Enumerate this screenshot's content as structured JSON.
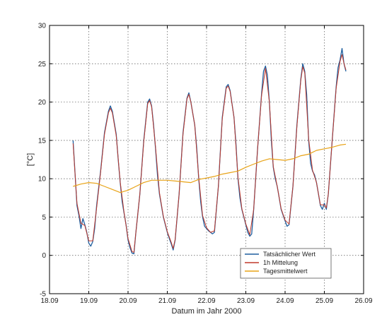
{
  "chart_data": {
    "type": "line",
    "xlabel": "Datum im Jahr 2000",
    "ylabel": "[°C]",
    "xlim": [
      "18.09",
      "26.09"
    ],
    "ylim": [
      -5,
      30
    ],
    "x_ticks": [
      "18.09",
      "19.09",
      "20.09",
      "21.09",
      "22.09",
      "23.09",
      "24.09",
      "25.09",
      "26.09"
    ],
    "y_ticks": [
      -5,
      0,
      5,
      10,
      15,
      20,
      25,
      30
    ],
    "grid": "dotted",
    "legend": "bottom-right",
    "series": [
      {
        "name": "Tatsächlicher Wert",
        "color": "#1f5f9f",
        "x_unit": "day",
        "points": [
          [
            18.6,
            15.0
          ],
          [
            18.7,
            6.5
          ],
          [
            18.75,
            5.2
          ],
          [
            18.8,
            3.5
          ],
          [
            18.85,
            4.8
          ],
          [
            18.9,
            4.0
          ],
          [
            18.95,
            3.0
          ],
          [
            19.0,
            1.6
          ],
          [
            19.05,
            1.2
          ],
          [
            19.1,
            1.8
          ],
          [
            19.15,
            3.5
          ],
          [
            19.2,
            6.5
          ],
          [
            19.3,
            11.0
          ],
          [
            19.4,
            16.0
          ],
          [
            19.5,
            18.8
          ],
          [
            19.55,
            19.5
          ],
          [
            19.6,
            18.8
          ],
          [
            19.7,
            15.8
          ],
          [
            19.75,
            12.5
          ],
          [
            19.8,
            9.5
          ],
          [
            19.85,
            7.0
          ],
          [
            19.9,
            5.5
          ],
          [
            19.95,
            4.0
          ],
          [
            20.0,
            2.0
          ],
          [
            20.05,
            1.0
          ],
          [
            20.1,
            0.3
          ],
          [
            20.15,
            0.2
          ],
          [
            20.2,
            3.0
          ],
          [
            20.3,
            8.0
          ],
          [
            20.4,
            15.0
          ],
          [
            20.5,
            20.0
          ],
          [
            20.55,
            20.4
          ],
          [
            20.6,
            19.5
          ],
          [
            20.65,
            17.0
          ],
          [
            20.7,
            14.0
          ],
          [
            20.75,
            10.5
          ],
          [
            20.8,
            8.0
          ],
          [
            20.85,
            6.5
          ],
          [
            20.9,
            5.0
          ],
          [
            21.0,
            3.0
          ],
          [
            21.05,
            2.2
          ],
          [
            21.1,
            1.5
          ],
          [
            21.15,
            0.7
          ],
          [
            21.2,
            2.0
          ],
          [
            21.3,
            8.0
          ],
          [
            21.4,
            16.0
          ],
          [
            21.5,
            20.5
          ],
          [
            21.55,
            21.2
          ],
          [
            21.6,
            20.0
          ],
          [
            21.7,
            17.0
          ],
          [
            21.75,
            14.0
          ],
          [
            21.8,
            10.0
          ],
          [
            21.85,
            7.0
          ],
          [
            21.9,
            5.0
          ],
          [
            21.95,
            3.8
          ],
          [
            22.05,
            3.2
          ],
          [
            22.15,
            2.8
          ],
          [
            22.2,
            3.0
          ],
          [
            22.3,
            9.0
          ],
          [
            22.4,
            18.0
          ],
          [
            22.5,
            22.0
          ],
          [
            22.55,
            22.3
          ],
          [
            22.6,
            21.5
          ],
          [
            22.7,
            18.0
          ],
          [
            22.75,
            14.5
          ],
          [
            22.8,
            10.0
          ],
          [
            22.85,
            7.5
          ],
          [
            22.9,
            6.0
          ],
          [
            23.0,
            4.0
          ],
          [
            23.05,
            3.0
          ],
          [
            23.1,
            2.5
          ],
          [
            23.15,
            2.8
          ],
          [
            23.2,
            6.0
          ],
          [
            23.3,
            14.0
          ],
          [
            23.4,
            21.0
          ],
          [
            23.45,
            24.0
          ],
          [
            23.5,
            24.7
          ],
          [
            23.55,
            23.5
          ],
          [
            23.6,
            20.0
          ],
          [
            23.65,
            15.0
          ],
          [
            23.7,
            11.5
          ],
          [
            23.75,
            10.0
          ],
          [
            23.8,
            9.0
          ],
          [
            23.85,
            7.5
          ],
          [
            23.9,
            6.0
          ],
          [
            24.0,
            4.5
          ],
          [
            24.05,
            3.8
          ],
          [
            24.1,
            4.0
          ],
          [
            24.2,
            9.0
          ],
          [
            24.3,
            17.0
          ],
          [
            24.4,
            23.0
          ],
          [
            24.45,
            25.0
          ],
          [
            24.5,
            24.0
          ],
          [
            24.55,
            21.0
          ],
          [
            24.6,
            15.0
          ],
          [
            24.65,
            12.0
          ],
          [
            24.7,
            11.0
          ],
          [
            24.75,
            10.5
          ],
          [
            24.8,
            9.5
          ],
          [
            24.85,
            8.0
          ],
          [
            24.9,
            6.5
          ],
          [
            24.95,
            6.0
          ],
          [
            25.0,
            6.8
          ],
          [
            25.05,
            6.0
          ],
          [
            25.1,
            8.0
          ],
          [
            25.2,
            15.0
          ],
          [
            25.3,
            22.0
          ],
          [
            25.35,
            24.5
          ],
          [
            25.4,
            25.5
          ],
          [
            25.45,
            27.0
          ],
          [
            25.5,
            25.0
          ],
          [
            25.55,
            24.0
          ]
        ]
      },
      {
        "name": "1h Mittelung",
        "color": "#c0392b",
        "x_unit": "day",
        "points": [
          [
            18.6,
            14.6
          ],
          [
            18.7,
            6.8
          ],
          [
            18.8,
            4.2
          ],
          [
            18.9,
            3.9
          ],
          [
            19.0,
            1.9
          ],
          [
            19.1,
            1.9
          ],
          [
            19.2,
            6.2
          ],
          [
            19.3,
            10.8
          ],
          [
            19.4,
            15.8
          ],
          [
            19.5,
            18.6
          ],
          [
            19.55,
            19.2
          ],
          [
            19.6,
            18.6
          ],
          [
            19.7,
            15.6
          ],
          [
            19.8,
            9.6
          ],
          [
            19.9,
            5.6
          ],
          [
            20.0,
            2.2
          ],
          [
            20.1,
            0.5
          ],
          [
            20.15,
            0.4
          ],
          [
            20.2,
            3.0
          ],
          [
            20.3,
            8.0
          ],
          [
            20.4,
            14.8
          ],
          [
            20.5,
            19.8
          ],
          [
            20.55,
            20.2
          ],
          [
            20.6,
            19.4
          ],
          [
            20.7,
            14.2
          ],
          [
            20.8,
            8.2
          ],
          [
            20.9,
            5.1
          ],
          [
            21.0,
            3.1
          ],
          [
            21.1,
            1.7
          ],
          [
            21.15,
            0.9
          ],
          [
            21.2,
            2.1
          ],
          [
            21.3,
            8.0
          ],
          [
            21.4,
            15.8
          ],
          [
            21.5,
            20.4
          ],
          [
            21.55,
            21.0
          ],
          [
            21.6,
            20.0
          ],
          [
            21.7,
            17.0
          ],
          [
            21.8,
            10.2
          ],
          [
            21.9,
            5.2
          ],
          [
            22.0,
            3.6
          ],
          [
            22.1,
            3.0
          ],
          [
            22.2,
            3.2
          ],
          [
            22.3,
            9.0
          ],
          [
            22.4,
            17.8
          ],
          [
            22.5,
            21.8
          ],
          [
            22.55,
            22.1
          ],
          [
            22.6,
            21.4
          ],
          [
            22.7,
            18.0
          ],
          [
            22.8,
            10.2
          ],
          [
            22.9,
            6.1
          ],
          [
            23.0,
            4.1
          ],
          [
            23.1,
            2.7
          ],
          [
            23.2,
            6.0
          ],
          [
            23.3,
            14.0
          ],
          [
            23.4,
            20.8
          ],
          [
            23.5,
            24.4
          ],
          [
            23.6,
            20.0
          ],
          [
            23.7,
            11.6
          ],
          [
            23.8,
            9.0
          ],
          [
            23.9,
            6.1
          ],
          [
            24.0,
            4.6
          ],
          [
            24.1,
            4.1
          ],
          [
            24.2,
            9.0
          ],
          [
            24.3,
            16.8
          ],
          [
            24.4,
            22.8
          ],
          [
            24.45,
            24.6
          ],
          [
            24.5,
            23.8
          ],
          [
            24.6,
            15.2
          ],
          [
            24.7,
            11.1
          ],
          [
            24.8,
            9.5
          ],
          [
            24.9,
            6.6
          ],
          [
            25.0,
            6.6
          ],
          [
            25.05,
            6.2
          ],
          [
            25.1,
            8.0
          ],
          [
            25.2,
            15.0
          ],
          [
            25.3,
            21.8
          ],
          [
            25.4,
            25.3
          ],
          [
            25.45,
            26.2
          ],
          [
            25.5,
            25.0
          ],
          [
            25.55,
            24.2
          ]
        ]
      },
      {
        "name": "Tagesmittelwert",
        "color": "#e8a317",
        "x_unit": "day",
        "points": [
          [
            18.6,
            9.0
          ],
          [
            18.8,
            9.3
          ],
          [
            19.0,
            9.5
          ],
          [
            19.2,
            9.4
          ],
          [
            19.4,
            9.0
          ],
          [
            19.6,
            8.6
          ],
          [
            19.8,
            8.2
          ],
          [
            20.0,
            8.5
          ],
          [
            20.2,
            9.0
          ],
          [
            20.4,
            9.5
          ],
          [
            20.6,
            9.8
          ],
          [
            20.8,
            9.8
          ],
          [
            21.0,
            9.8
          ],
          [
            21.2,
            9.7
          ],
          [
            21.4,
            9.6
          ],
          [
            21.6,
            9.5
          ],
          [
            21.8,
            9.9
          ],
          [
            22.0,
            10.1
          ],
          [
            22.2,
            10.3
          ],
          [
            22.4,
            10.6
          ],
          [
            22.6,
            10.8
          ],
          [
            22.8,
            11.0
          ],
          [
            23.0,
            11.5
          ],
          [
            23.2,
            11.9
          ],
          [
            23.4,
            12.3
          ],
          [
            23.6,
            12.6
          ],
          [
            23.8,
            12.5
          ],
          [
            24.0,
            12.4
          ],
          [
            24.2,
            12.6
          ],
          [
            24.4,
            13.0
          ],
          [
            24.6,
            13.2
          ],
          [
            24.8,
            13.7
          ],
          [
            25.0,
            13.9
          ],
          [
            25.2,
            14.1
          ],
          [
            25.4,
            14.4
          ],
          [
            25.55,
            14.5
          ]
        ]
      }
    ]
  }
}
